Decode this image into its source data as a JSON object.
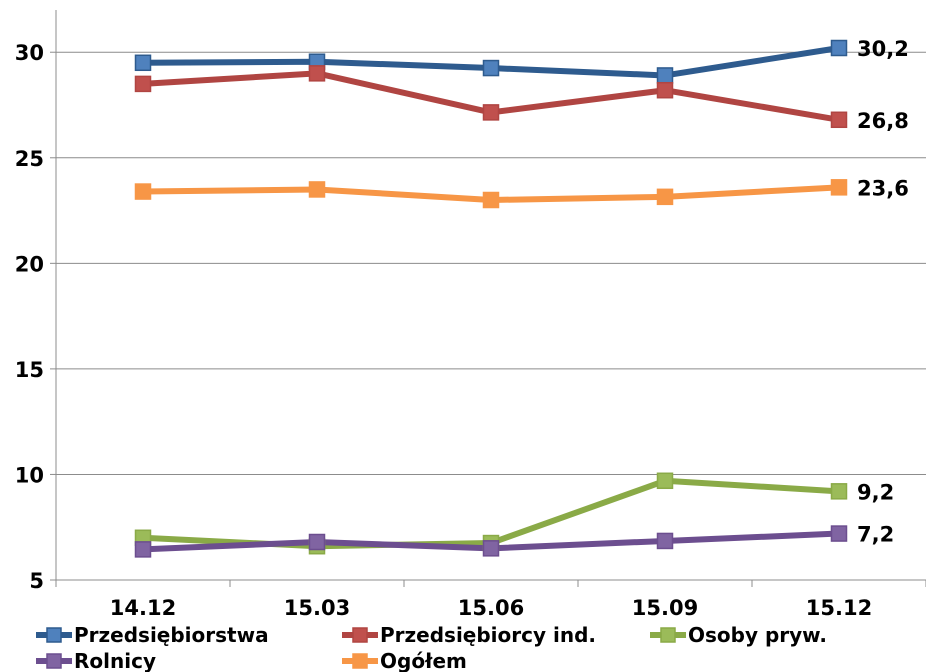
{
  "chart_data": {
    "type": "line",
    "categories": [
      "14.12",
      "15.03",
      "15.06",
      "15.09",
      "15.12"
    ],
    "ylim": [
      5,
      32
    ],
    "yticks": [
      5,
      10,
      15,
      20,
      25,
      30
    ],
    "grid": "horizontal",
    "legend_position": "bottom",
    "series": [
      {
        "name": "Przedsiębiorstwa",
        "color": "#2E5B8E",
        "marker_color": "#4F81BD",
        "values": [
          29.5,
          29.55,
          29.25,
          28.9,
          30.2
        ],
        "end_label": "30,2"
      },
      {
        "name": "Przedsiębiorcy ind.",
        "color": "#B04542",
        "marker_color": "#C0504D",
        "values": [
          28.5,
          29.0,
          27.15,
          28.2,
          26.8
        ],
        "end_label": "26,8"
      },
      {
        "name": "Osoby pryw.",
        "color": "#8AAA47",
        "marker_color": "#9BBB59",
        "values": [
          7.0,
          6.6,
          6.75,
          9.7,
          9.2
        ],
        "end_label": "9,2"
      },
      {
        "name": "Rolnicy",
        "color": "#6C4E8F",
        "marker_color": "#8064A2",
        "values": [
          6.45,
          6.8,
          6.5,
          6.85,
          7.2
        ],
        "end_label": "7,2"
      },
      {
        "name": "Ogółem",
        "color": "#F79646",
        "marker_color": "#F79646",
        "values": [
          23.4,
          23.5,
          23.0,
          23.15,
          23.6
        ],
        "end_label": "23,6"
      }
    ]
  }
}
